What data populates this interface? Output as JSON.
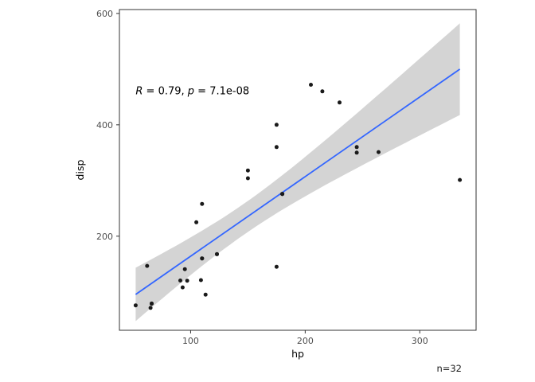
{
  "figure": {
    "background": "#ffffff",
    "caption_n": "n=32"
  },
  "chart_data": {
    "type": "scatter",
    "title": "",
    "xlabel": "hp",
    "ylabel": "disp",
    "x_ticks": [
      100,
      200,
      300
    ],
    "y_ticks": [
      200,
      400,
      600
    ],
    "xlim": [
      37.85,
      349.15
    ],
    "ylim": [
      31,
      607
    ],
    "grid": false,
    "legend": "none",
    "points": [
      [
        110,
        160
      ],
      [
        110,
        160
      ],
      [
        93,
        108
      ],
      [
        110,
        258
      ],
      [
        175,
        360
      ],
      [
        105,
        225
      ],
      [
        245,
        360
      ],
      [
        62,
        146.7
      ],
      [
        95,
        140.8
      ],
      [
        123,
        167.6
      ],
      [
        123,
        167.6
      ],
      [
        180,
        275.8
      ],
      [
        180,
        275.8
      ],
      [
        180,
        275.8
      ],
      [
        205,
        472
      ],
      [
        215,
        460
      ],
      [
        230,
        440
      ],
      [
        66,
        78.7
      ],
      [
        52,
        75.7
      ],
      [
        65,
        71.1
      ],
      [
        97,
        120.1
      ],
      [
        150,
        318
      ],
      [
        150,
        304
      ],
      [
        245,
        350
      ],
      [
        175,
        400
      ],
      [
        66,
        79
      ],
      [
        91,
        120.3
      ],
      [
        113,
        95.1
      ],
      [
        264,
        351
      ],
      [
        175,
        145
      ],
      [
        335,
        301
      ],
      [
        109,
        121
      ]
    ],
    "regression": {
      "slope": 1.4299,
      "intercept": 20.9925,
      "x_range": [
        52,
        335
      ],
      "residual_se": 77.05,
      "n": 32,
      "mean_x": 146.6875,
      "sxx": 145727.05,
      "t_crit": 2.042
    },
    "annotation": {
      "r_italic": "R",
      "r_text": " = 0.79, ",
      "p_italic": "p",
      "p_text": " = 7.1e-08",
      "x": 52,
      "y": 455
    },
    "colors": {
      "line": "#3366FF",
      "ribbon": "#d4d4d4",
      "point": "#1a1a1a",
      "panel_border": "#333333",
      "tick": "#333333",
      "tick_label": "#4d4d4d",
      "axis_title": "#000000",
      "annotation_text": "#000000"
    }
  }
}
